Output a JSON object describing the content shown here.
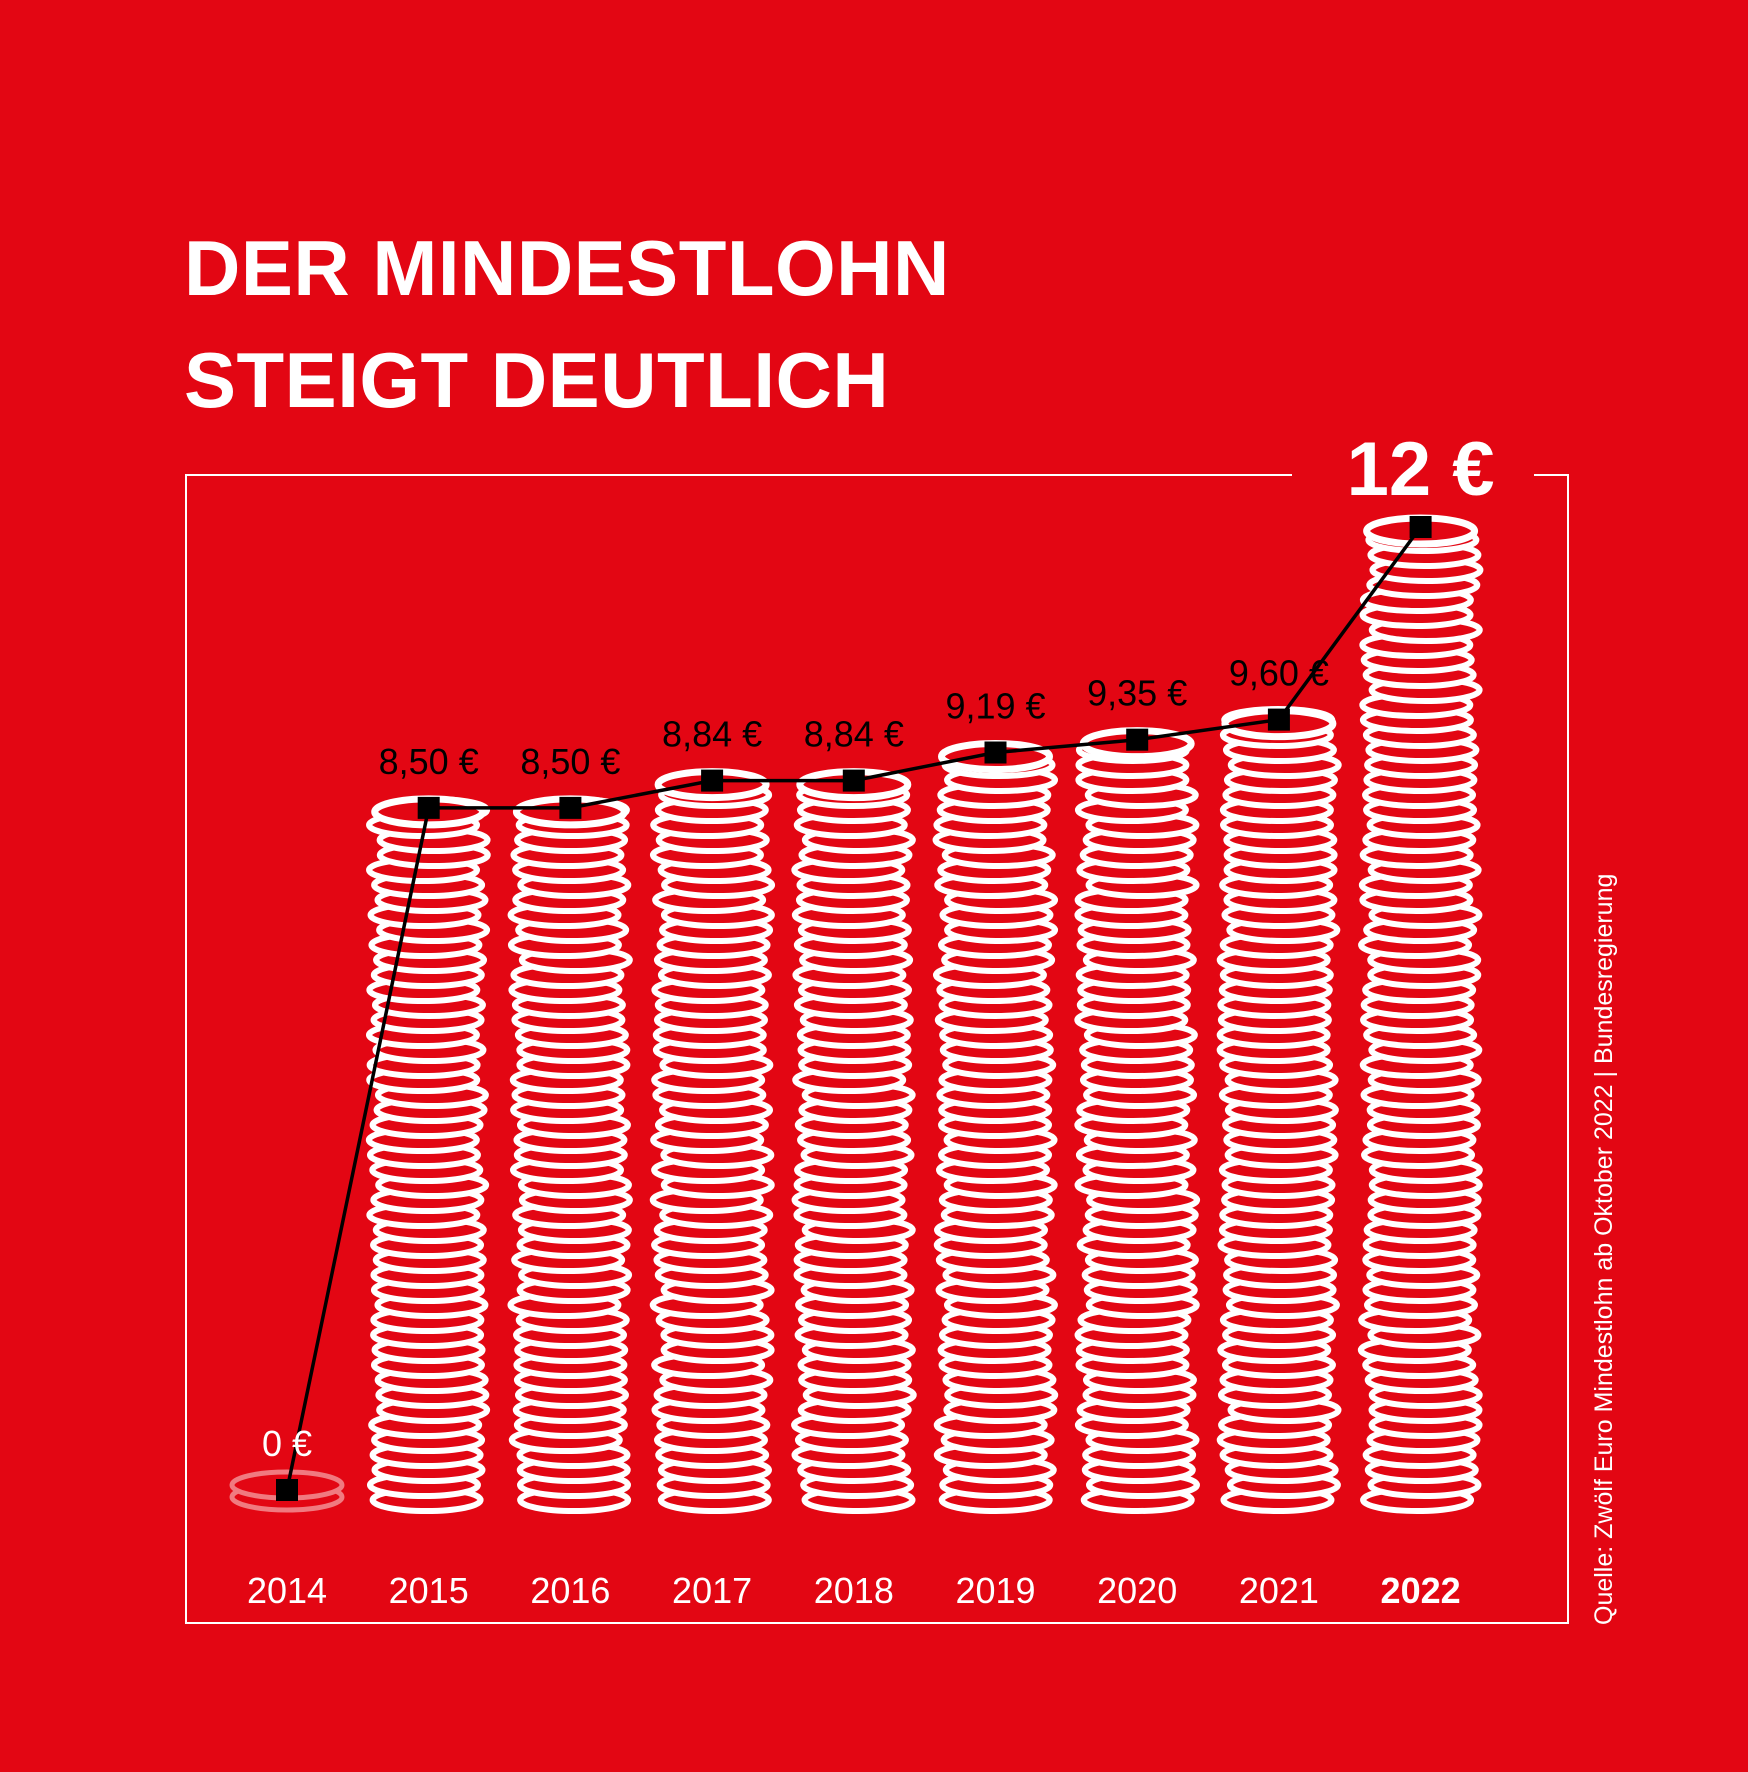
{
  "title": {
    "line1": "DER MINDESTLOHN",
    "line2": "STEIGT DEUTLICH"
  },
  "source": "Quelle: Zwölf Euro Mindestlohn ab Oktober 2022 | Bundesregierung",
  "colors": {
    "background": "#E30613",
    "coin": "#ffffff",
    "line": "#000000"
  },
  "chart_data": {
    "type": "line",
    "x": [
      "2014",
      "2015",
      "2016",
      "2017",
      "2018",
      "2019",
      "2020",
      "2021",
      "2022"
    ],
    "values": [
      0,
      8.5,
      8.5,
      8.84,
      8.84,
      9.19,
      9.35,
      9.6,
      12
    ],
    "value_labels": [
      "0 €",
      "8,50 €",
      "8,50 €",
      "8,84 €",
      "8,84 €",
      "9,19 €",
      "9,35 €",
      "9,60 €",
      "12 €"
    ],
    "highlight": "2022",
    "bars": "coin stacks",
    "grid": false
  }
}
